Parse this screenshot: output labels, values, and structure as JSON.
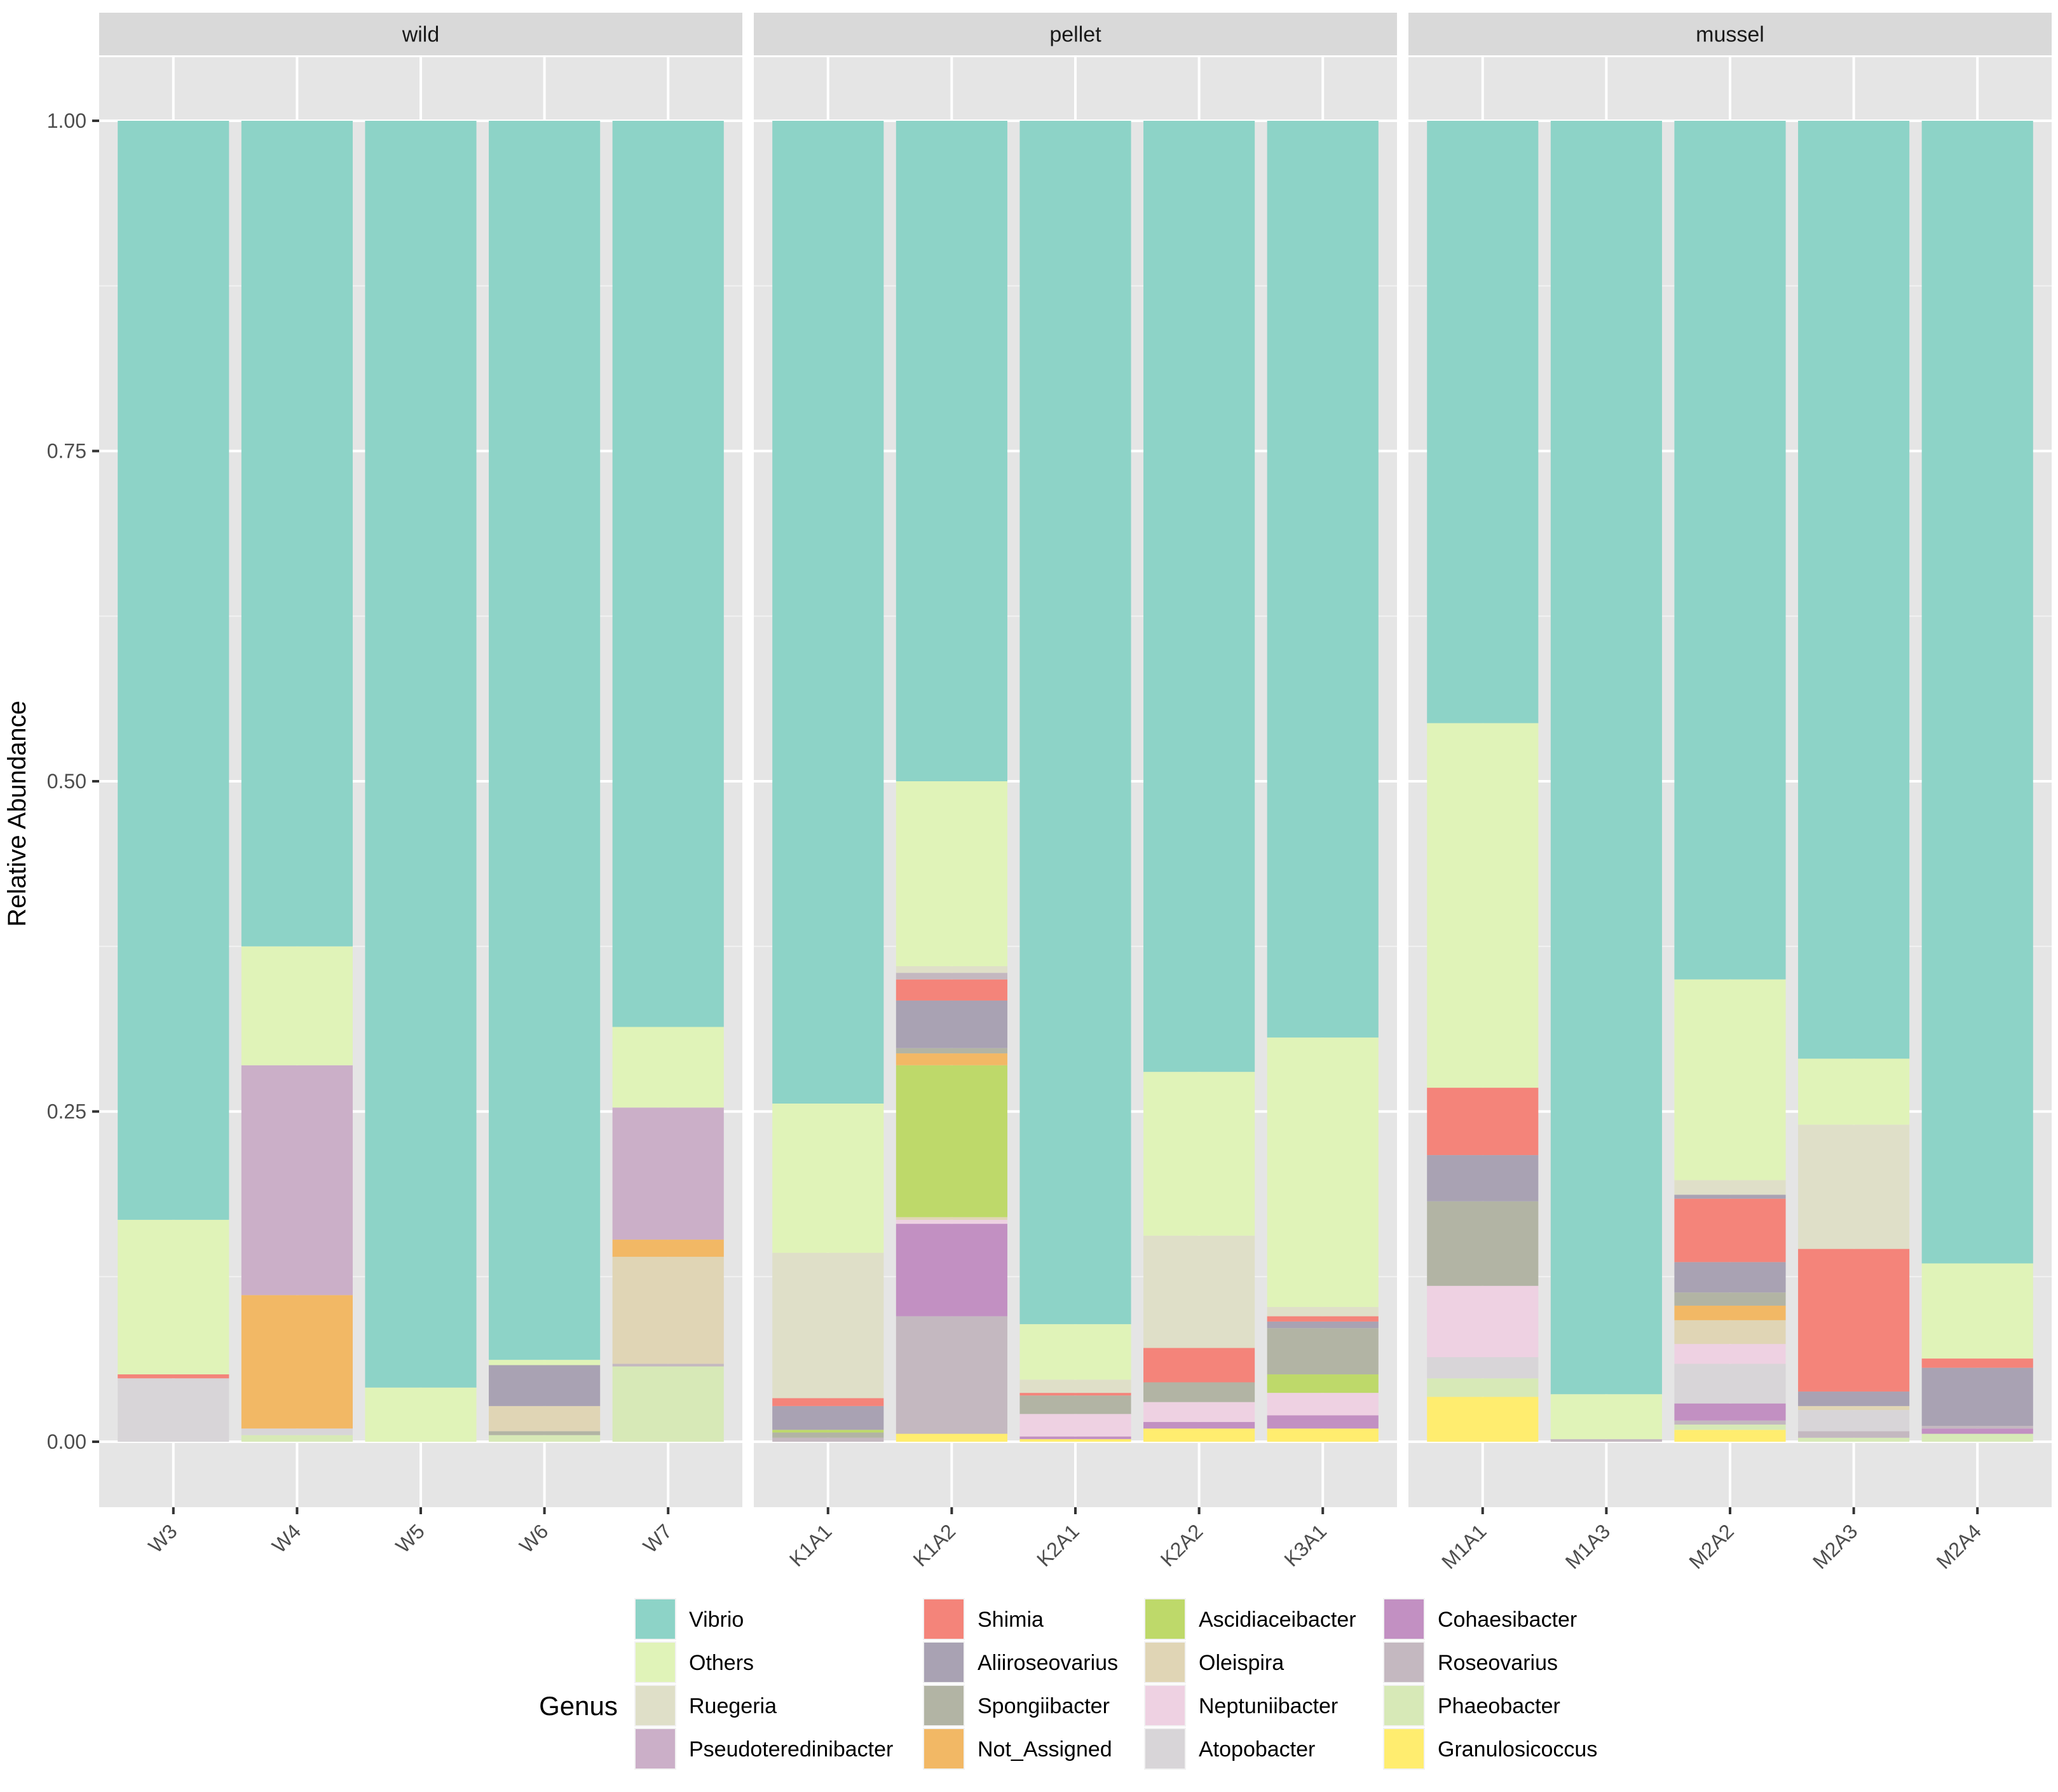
{
  "chart_data": {
    "type": "bar",
    "stacked": true,
    "ylabel": "Relative Abundance",
    "xlabel": "",
    "ylim": [
      -0.05,
      1.05
    ],
    "yticks": [
      0.0,
      0.25,
      0.5,
      0.75,
      1.0
    ],
    "ytick_labels": [
      "0.00",
      "0.25",
      "0.50",
      "0.75",
      "1.00"
    ],
    "legend_title": "Genus",
    "legend_position": "bottom",
    "genera": [
      {
        "name": "Vibrio",
        "color": "#8DD3C7"
      },
      {
        "name": "Others",
        "color": "#E0F3B8"
      },
      {
        "name": "Ruegeria",
        "color": "#DFDFC8"
      },
      {
        "name": "Pseudoteredinibacter",
        "color": "#CBAFC8"
      },
      {
        "name": "Shimia",
        "color": "#F4847A"
      },
      {
        "name": "Aliiroseovarius",
        "color": "#A9A2B3"
      },
      {
        "name": "Spongiibacter",
        "color": "#B2B4A4"
      },
      {
        "name": "Not_Assigned",
        "color": "#F2B865"
      },
      {
        "name": "Ascidiaceibacter",
        "color": "#BED96A"
      },
      {
        "name": "Oleispira",
        "color": "#E0D5B5"
      },
      {
        "name": "Neptuniibacter",
        "color": "#EED1E2"
      },
      {
        "name": "Atopobacter",
        "color": "#D8D5D8"
      },
      {
        "name": "Cohaesibacter",
        "color": "#C290C2"
      },
      {
        "name": "Roseovarius",
        "color": "#C4B8C0"
      },
      {
        "name": "Phaeobacter",
        "color": "#D7E9B7"
      },
      {
        "name": "Granulosicoccus",
        "color": "#FFED6F"
      }
    ],
    "panels": [
      {
        "name": "wild",
        "samples": [
          {
            "name": "W3",
            "segments": [
              {
                "genus": "Atopobacter",
                "value": 0.048
              },
              {
                "genus": "Shimia",
                "value": 0.003
              },
              {
                "genus": "Others",
                "value": 0.117
              },
              {
                "genus": "Vibrio",
                "value": 0.832
              }
            ]
          },
          {
            "name": "W4",
            "segments": [
              {
                "genus": "Phaeobacter",
                "value": 0.005
              },
              {
                "genus": "Atopobacter",
                "value": 0.005
              },
              {
                "genus": "Not_Assigned",
                "value": 0.101
              },
              {
                "genus": "Pseudoteredinibacter",
                "value": 0.174
              },
              {
                "genus": "Others",
                "value": 0.09
              },
              {
                "genus": "Vibrio",
                "value": 0.625
              }
            ]
          },
          {
            "name": "W5",
            "segments": [
              {
                "genus": "Others",
                "value": 0.041
              },
              {
                "genus": "Vibrio",
                "value": 0.959
              }
            ]
          },
          {
            "name": "W6",
            "segments": [
              {
                "genus": "Phaeobacter",
                "value": 0.005
              },
              {
                "genus": "Spongiibacter",
                "value": 0.003
              },
              {
                "genus": "Oleispira",
                "value": 0.019
              },
              {
                "genus": "Aliiroseovarius",
                "value": 0.031
              },
              {
                "genus": "Others",
                "value": 0.004
              },
              {
                "genus": "Vibrio",
                "value": 0.938
              }
            ]
          },
          {
            "name": "W7",
            "segments": [
              {
                "genus": "Phaeobacter",
                "value": 0.057
              },
              {
                "genus": "Roseovarius",
                "value": 0.002
              },
              {
                "genus": "Oleispira",
                "value": 0.081
              },
              {
                "genus": "Not_Assigned",
                "value": 0.013
              },
              {
                "genus": "Pseudoteredinibacter",
                "value": 0.1
              },
              {
                "genus": "Others",
                "value": 0.061
              },
              {
                "genus": "Vibrio",
                "value": 0.686
              }
            ]
          }
        ]
      },
      {
        "name": "pellet",
        "samples": [
          {
            "name": "K1A1",
            "segments": [
              {
                "genus": "Roseovarius",
                "value": 0.003
              },
              {
                "genus": "Spongiibacter",
                "value": 0.004
              },
              {
                "genus": "Ascidiaceibacter",
                "value": 0.002
              },
              {
                "genus": "Aliiroseovarius",
                "value": 0.018
              },
              {
                "genus": "Shimia",
                "value": 0.006
              },
              {
                "genus": "Ruegeria",
                "value": 0.11
              },
              {
                "genus": "Others",
                "value": 0.113
              },
              {
                "genus": "Vibrio",
                "value": 0.744
              }
            ]
          },
          {
            "name": "K1A2",
            "segments": [
              {
                "genus": "Granulosicoccus",
                "value": 0.006
              },
              {
                "genus": "Roseovarius",
                "value": 0.089
              },
              {
                "genus": "Cohaesibacter",
                "value": 0.07
              },
              {
                "genus": "Neptuniibacter",
                "value": 0.003
              },
              {
                "genus": "Oleispira",
                "value": 0.002
              },
              {
                "genus": "Ascidiaceibacter",
                "value": 0.115
              },
              {
                "genus": "Not_Assigned",
                "value": 0.009
              },
              {
                "genus": "Spongiibacter",
                "value": 0.004
              },
              {
                "genus": "Aliiroseovarius",
                "value": 0.036
              },
              {
                "genus": "Shimia",
                "value": 0.016
              },
              {
                "genus": "Roseovarius",
                "value": 0.005
              },
              {
                "genus": "Ruegeria",
                "value": 0.005
              },
              {
                "genus": "Others",
                "value": 0.14
              },
              {
                "genus": "Vibrio",
                "value": 0.5
              }
            ]
          },
          {
            "name": "K2A1",
            "segments": [
              {
                "genus": "Granulosicoccus",
                "value": 0.002
              },
              {
                "genus": "Cohaesibacter",
                "value": 0.002
              },
              {
                "genus": "Neptuniibacter",
                "value": 0.017
              },
              {
                "genus": "Spongiibacter",
                "value": 0.014
              },
              {
                "genus": "Shimia",
                "value": 0.002
              },
              {
                "genus": "Ruegeria",
                "value": 0.01
              },
              {
                "genus": "Others",
                "value": 0.042
              },
              {
                "genus": "Vibrio",
                "value": 0.911
              }
            ]
          },
          {
            "name": "K2A2",
            "segments": [
              {
                "genus": "Granulosicoccus",
                "value": 0.01
              },
              {
                "genus": "Cohaesibacter",
                "value": 0.005
              },
              {
                "genus": "Neptuniibacter",
                "value": 0.015
              },
              {
                "genus": "Spongiibacter",
                "value": 0.015
              },
              {
                "genus": "Shimia",
                "value": 0.026
              },
              {
                "genus": "Ruegeria",
                "value": 0.085
              },
              {
                "genus": "Others",
                "value": 0.124
              },
              {
                "genus": "Vibrio",
                "value": 0.72
              }
            ]
          },
          {
            "name": "K3A1",
            "segments": [
              {
                "genus": "Granulosicoccus",
                "value": 0.01
              },
              {
                "genus": "Cohaesibacter",
                "value": 0.01
              },
              {
                "genus": "Neptuniibacter",
                "value": 0.017
              },
              {
                "genus": "Ascidiaceibacter",
                "value": 0.014
              },
              {
                "genus": "Spongiibacter",
                "value": 0.035
              },
              {
                "genus": "Aliiroseovarius",
                "value": 0.005
              },
              {
                "genus": "Shimia",
                "value": 0.004
              },
              {
                "genus": "Ruegeria",
                "value": 0.007
              },
              {
                "genus": "Others",
                "value": 0.204
              },
              {
                "genus": "Vibrio",
                "value": 0.694
              }
            ]
          }
        ]
      },
      {
        "name": "mussel",
        "samples": [
          {
            "name": "M1A1",
            "segments": [
              {
                "genus": "Granulosicoccus",
                "value": 0.034
              },
              {
                "genus": "Phaeobacter",
                "value": 0.014
              },
              {
                "genus": "Atopobacter",
                "value": 0.016
              },
              {
                "genus": "Neptuniibacter",
                "value": 0.054
              },
              {
                "genus": "Spongiibacter",
                "value": 0.064
              },
              {
                "genus": "Aliiroseovarius",
                "value": 0.035
              },
              {
                "genus": "Shimia",
                "value": 0.051
              },
              {
                "genus": "Others",
                "value": 0.276
              },
              {
                "genus": "Vibrio",
                "value": 0.456
              }
            ]
          },
          {
            "name": "M1A3",
            "segments": [
              {
                "genus": "Roseovarius",
                "value": 0.002
              },
              {
                "genus": "Others",
                "value": 0.034
              },
              {
                "genus": "Vibrio",
                "value": 0.964
              }
            ]
          },
          {
            "name": "M2A2",
            "segments": [
              {
                "genus": "Granulosicoccus",
                "value": 0.009
              },
              {
                "genus": "Phaeobacter",
                "value": 0.004
              },
              {
                "genus": "Roseovarius",
                "value": 0.003
              },
              {
                "genus": "Cohaesibacter",
                "value": 0.013
              },
              {
                "genus": "Atopobacter",
                "value": 0.03
              },
              {
                "genus": "Neptuniibacter",
                "value": 0.015
              },
              {
                "genus": "Oleispira",
                "value": 0.018
              },
              {
                "genus": "Not_Assigned",
                "value": 0.011
              },
              {
                "genus": "Spongiibacter",
                "value": 0.01
              },
              {
                "genus": "Aliiroseovarius",
                "value": 0.023
              },
              {
                "genus": "Shimia",
                "value": 0.048
              },
              {
                "genus": "Aliiroseovarius",
                "value": 0.003
              },
              {
                "genus": "Ruegeria",
                "value": 0.011
              },
              {
                "genus": "Others",
                "value": 0.152
              },
              {
                "genus": "Vibrio",
                "value": 0.65
              }
            ]
          },
          {
            "name": "M2A3",
            "segments": [
              {
                "genus": "Phaeobacter",
                "value": 0.003
              },
              {
                "genus": "Roseovarius",
                "value": 0.005
              },
              {
                "genus": "Atopobacter",
                "value": 0.016
              },
              {
                "genus": "Oleispira",
                "value": 0.003
              },
              {
                "genus": "Aliiroseovarius",
                "value": 0.011
              },
              {
                "genus": "Shimia",
                "value": 0.108
              },
              {
                "genus": "Ruegeria",
                "value": 0.094
              },
              {
                "genus": "Others",
                "value": 0.05
              },
              {
                "genus": "Vibrio",
                "value": 0.71
              }
            ]
          },
          {
            "name": "M2A4",
            "segments": [
              {
                "genus": "Phaeobacter",
                "value": 0.006
              },
              {
                "genus": "Cohaesibacter",
                "value": 0.004
              },
              {
                "genus": "Roseovarius",
                "value": 0.002
              },
              {
                "genus": "Aliiroseovarius",
                "value": 0.044
              },
              {
                "genus": "Shimia",
                "value": 0.007
              },
              {
                "genus": "Others",
                "value": 0.072
              },
              {
                "genus": "Vibrio",
                "value": 0.865
              }
            ]
          }
        ]
      }
    ]
  }
}
